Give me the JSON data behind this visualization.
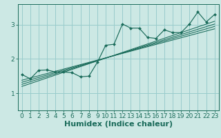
{
  "xlabel": "Humidex (Indice chaleur)",
  "bg_color": "#cce8e4",
  "grid_color": "#99cccc",
  "line_color": "#1a6b5a",
  "xlim": [
    -0.5,
    23.5
  ],
  "ylim": [
    0.5,
    3.6
  ],
  "yticks": [
    1,
    2,
    3
  ],
  "xticks": [
    0,
    1,
    2,
    3,
    4,
    5,
    6,
    7,
    8,
    9,
    10,
    11,
    12,
    13,
    14,
    15,
    16,
    17,
    18,
    19,
    20,
    21,
    22,
    23
  ],
  "scatter_x": [
    0,
    1,
    2,
    3,
    4,
    5,
    6,
    7,
    8,
    9,
    10,
    11,
    12,
    13,
    14,
    15,
    16,
    17,
    18,
    19,
    20,
    21,
    22,
    23
  ],
  "scatter_y": [
    1.55,
    1.42,
    1.67,
    1.68,
    1.62,
    1.62,
    1.6,
    1.48,
    1.5,
    1.9,
    2.4,
    2.43,
    3.02,
    2.9,
    2.9,
    2.63,
    2.6,
    2.85,
    2.77,
    2.77,
    3.02,
    3.37,
    3.08,
    3.3
  ],
  "reg_lines": [
    {
      "x": [
        0,
        23
      ],
      "y": [
        1.38,
        2.88
      ]
    },
    {
      "x": [
        0,
        23
      ],
      "y": [
        1.32,
        2.95
      ]
    },
    {
      "x": [
        0,
        23
      ],
      "y": [
        1.26,
        3.02
      ]
    },
    {
      "x": [
        0,
        23
      ],
      "y": [
        1.2,
        3.1
      ]
    }
  ],
  "xlabel_fontsize": 8,
  "tick_fontsize": 6.5
}
